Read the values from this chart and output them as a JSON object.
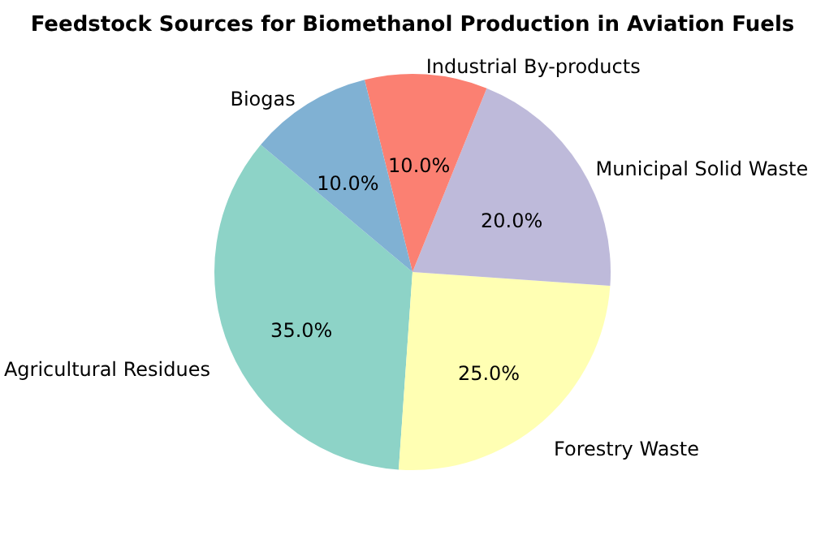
{
  "chart_data": {
    "type": "pie",
    "title": "Feedstock Sources for Biomethanol Production in Aviation Fuels",
    "categories": [
      "Agricultural Residues",
      "Forestry Waste",
      "Municipal Solid Waste",
      "Industrial By-products",
      "Biogas"
    ],
    "values": [
      35,
      25,
      20,
      10,
      10
    ],
    "colors": [
      "#8dd3c7",
      "#ffffb3",
      "#bebada",
      "#fb8072",
      "#80b1d3"
    ],
    "value_labels": [
      "35.0%",
      "25.0%",
      "20.0%",
      "10.0%",
      "10.0%"
    ],
    "legend": false
  }
}
